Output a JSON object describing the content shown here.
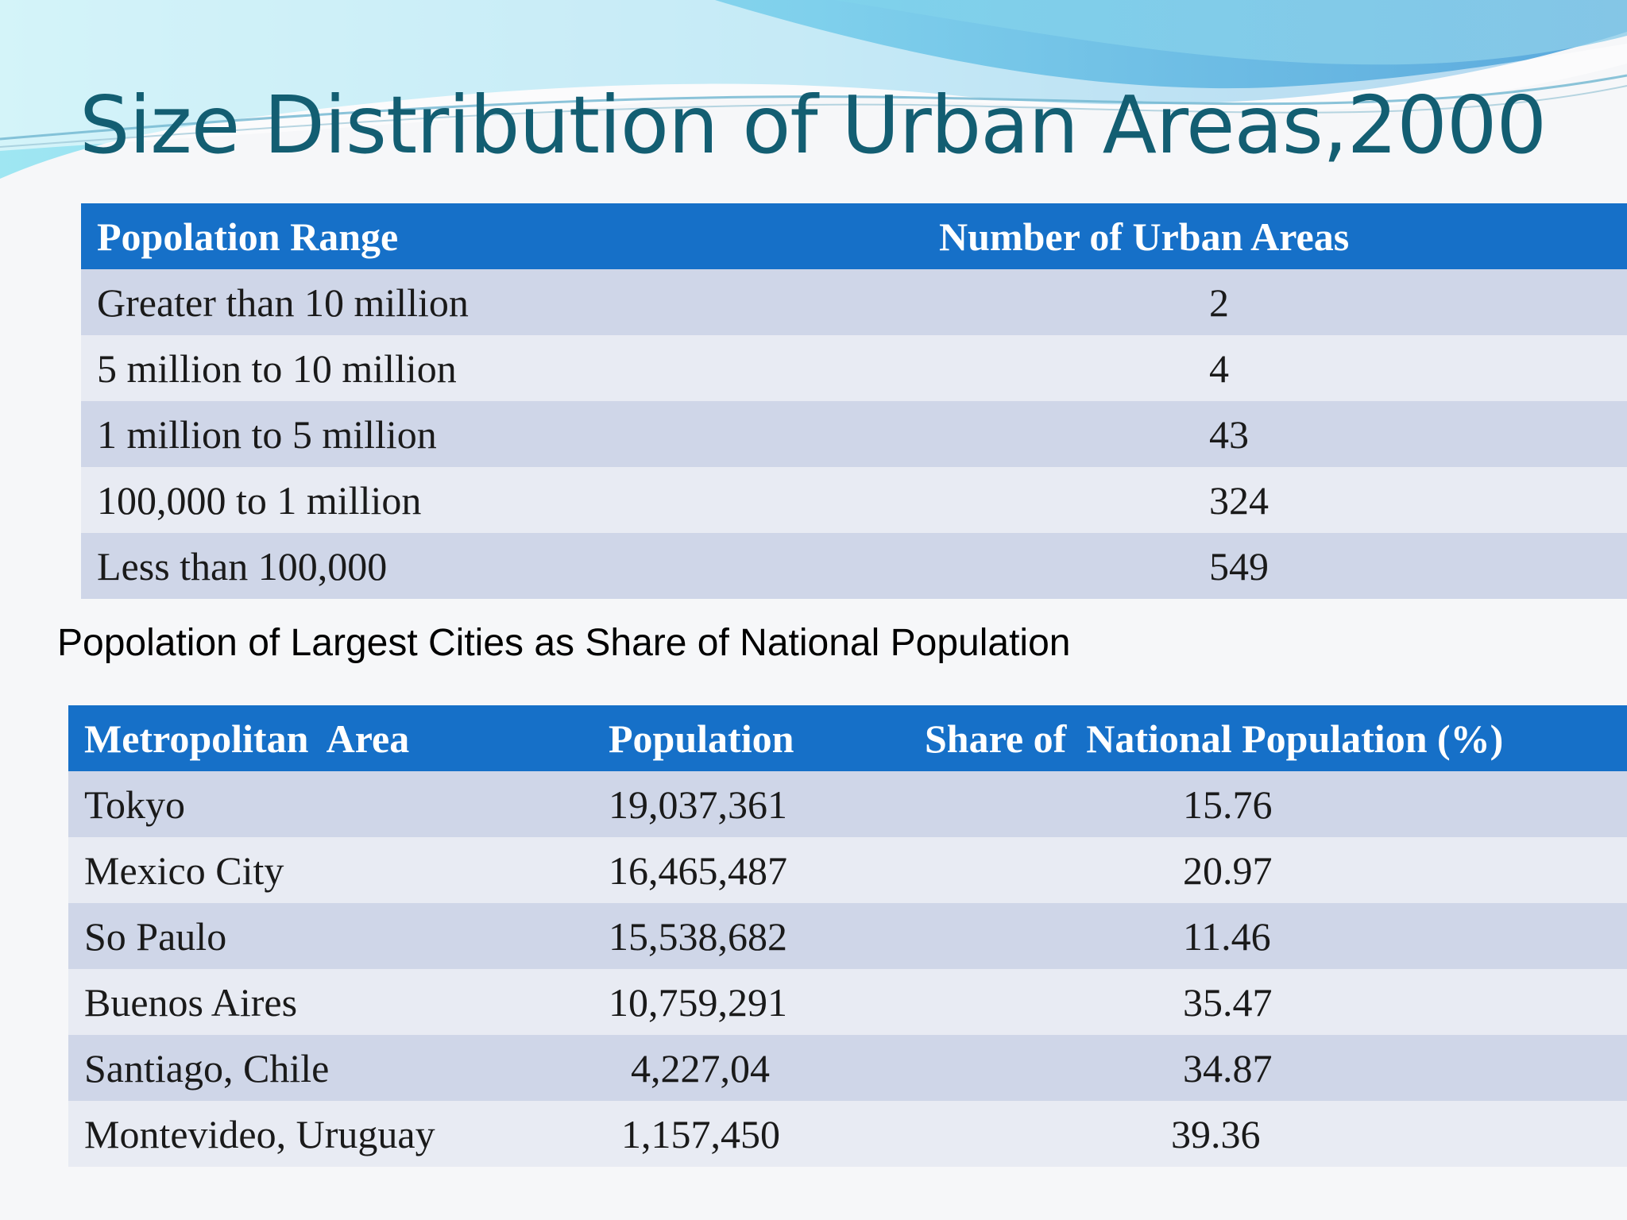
{
  "title": "Size Distribution of Urban Areas,2000",
  "table1": {
    "headers": [
      "Popolation Range",
      "Number of Urban Areas"
    ],
    "rows": [
      [
        "Greater than 10 million",
        "2"
      ],
      [
        "5 million to 10 million",
        "4"
      ],
      [
        "1 million to 5 million",
        "43"
      ],
      [
        "100,000 to 1 million",
        "324"
      ],
      [
        "Less than 100,000",
        "549"
      ]
    ]
  },
  "subtitle": "Popolation of Largest Cities as Share of National Population",
  "table2": {
    "headers": [
      "Metropolitan  Area",
      "Population",
      "Share of  National Population (%)"
    ],
    "rows": [
      [
        "Tokyo",
        "19,037,361",
        "15.76"
      ],
      [
        "Mexico City",
        "16,465,487",
        "20.97"
      ],
      [
        "So Paulo",
        "15,538,682",
        "11.46"
      ],
      [
        "Buenos Aires",
        "10,759,291",
        "35.47"
      ],
      [
        "Santiago, Chile",
        "4,227,04",
        "34.87"
      ],
      [
        "Montevideo, Uruguay",
        "1,157,450",
        "39.36"
      ]
    ]
  },
  "colors": {
    "header_bg": "#1670c8",
    "row_odd": "#cfd6e8",
    "row_even": "#e8ebf3",
    "title": "#135e72"
  }
}
